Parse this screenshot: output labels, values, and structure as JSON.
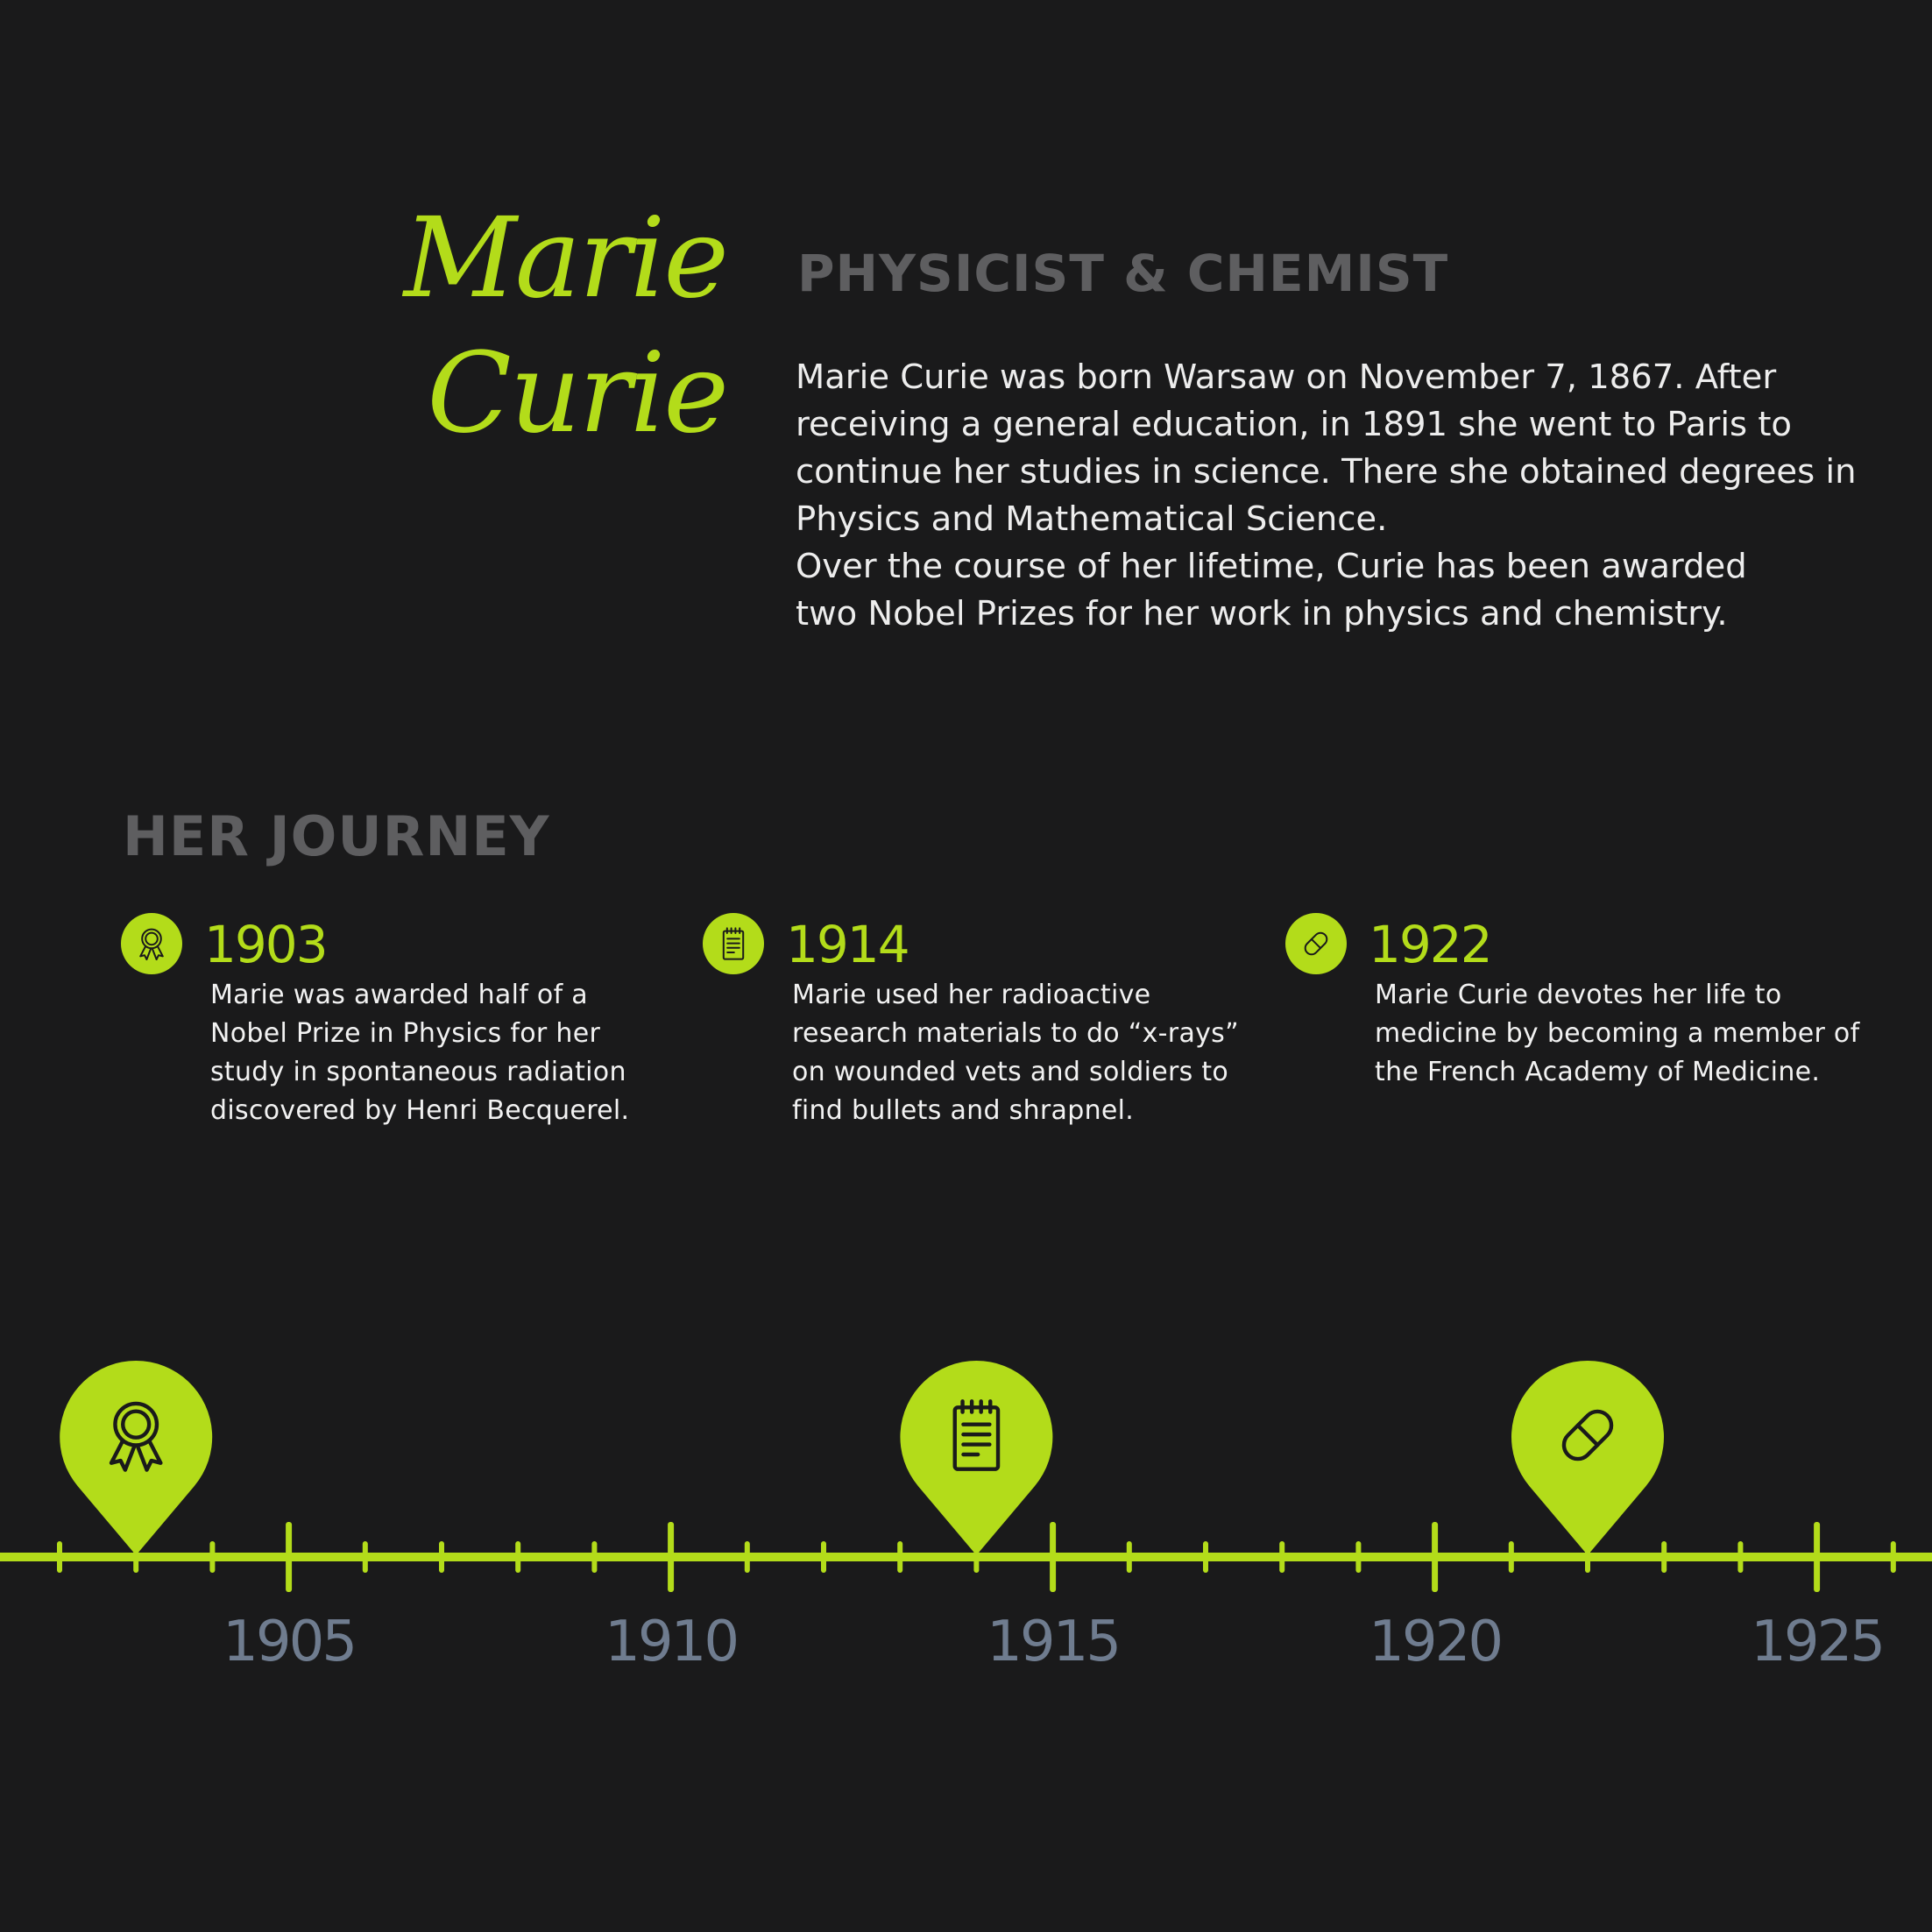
{
  "accent_color": "#b3dc1a",
  "header": {
    "name_line1": "Marie",
    "name_line2": "Curie",
    "role": "PHYSICIST & CHEMIST",
    "bio_lines": [
      "Marie Curie was born Warsaw on November 7, 1867. After",
      "receiving a general education, in 1891 she went to Paris to",
      "continue her studies in science. There she obtained degrees in",
      "Physics and Mathematical Science.",
      "Over the course of her lifetime, Curie has been awarded",
      "two Nobel Prizes for her work in physics and chemistry."
    ]
  },
  "journey": {
    "heading": "HER JOURNEY",
    "events": [
      {
        "year": "1903",
        "icon": "award-ribbon-icon",
        "lines": [
          "Marie was awarded half of a",
          "Nobel Prize in Physics for her",
          "study in spontaneous radiation",
          "discovered by Henri Becquerel."
        ]
      },
      {
        "year": "1914",
        "icon": "notepad-icon",
        "lines": [
          "Marie used her radioactive",
          "research materials to do “x-rays”",
          "on wounded vets and soldiers to",
          "find bullets and shrapnel."
        ]
      },
      {
        "year": "1922",
        "icon": "pill-icon",
        "lines": [
          "Marie Curie devotes her life to",
          "medicine by becoming a member of",
          "the French Academy of Medicine."
        ]
      }
    ]
  },
  "timeline": {
    "start_year": 1902,
    "end_year": 1926,
    "labels": [
      "1905",
      "1910",
      "1915",
      "1920",
      "1925"
    ],
    "markers": [
      {
        "year": 1903,
        "icon": "award-ribbon-icon"
      },
      {
        "year": 1914,
        "icon": "notepad-icon"
      },
      {
        "year": 1922,
        "icon": "pill-icon"
      }
    ],
    "line_color": "#b3dc1a",
    "label_color": "#6f7c8f"
  }
}
